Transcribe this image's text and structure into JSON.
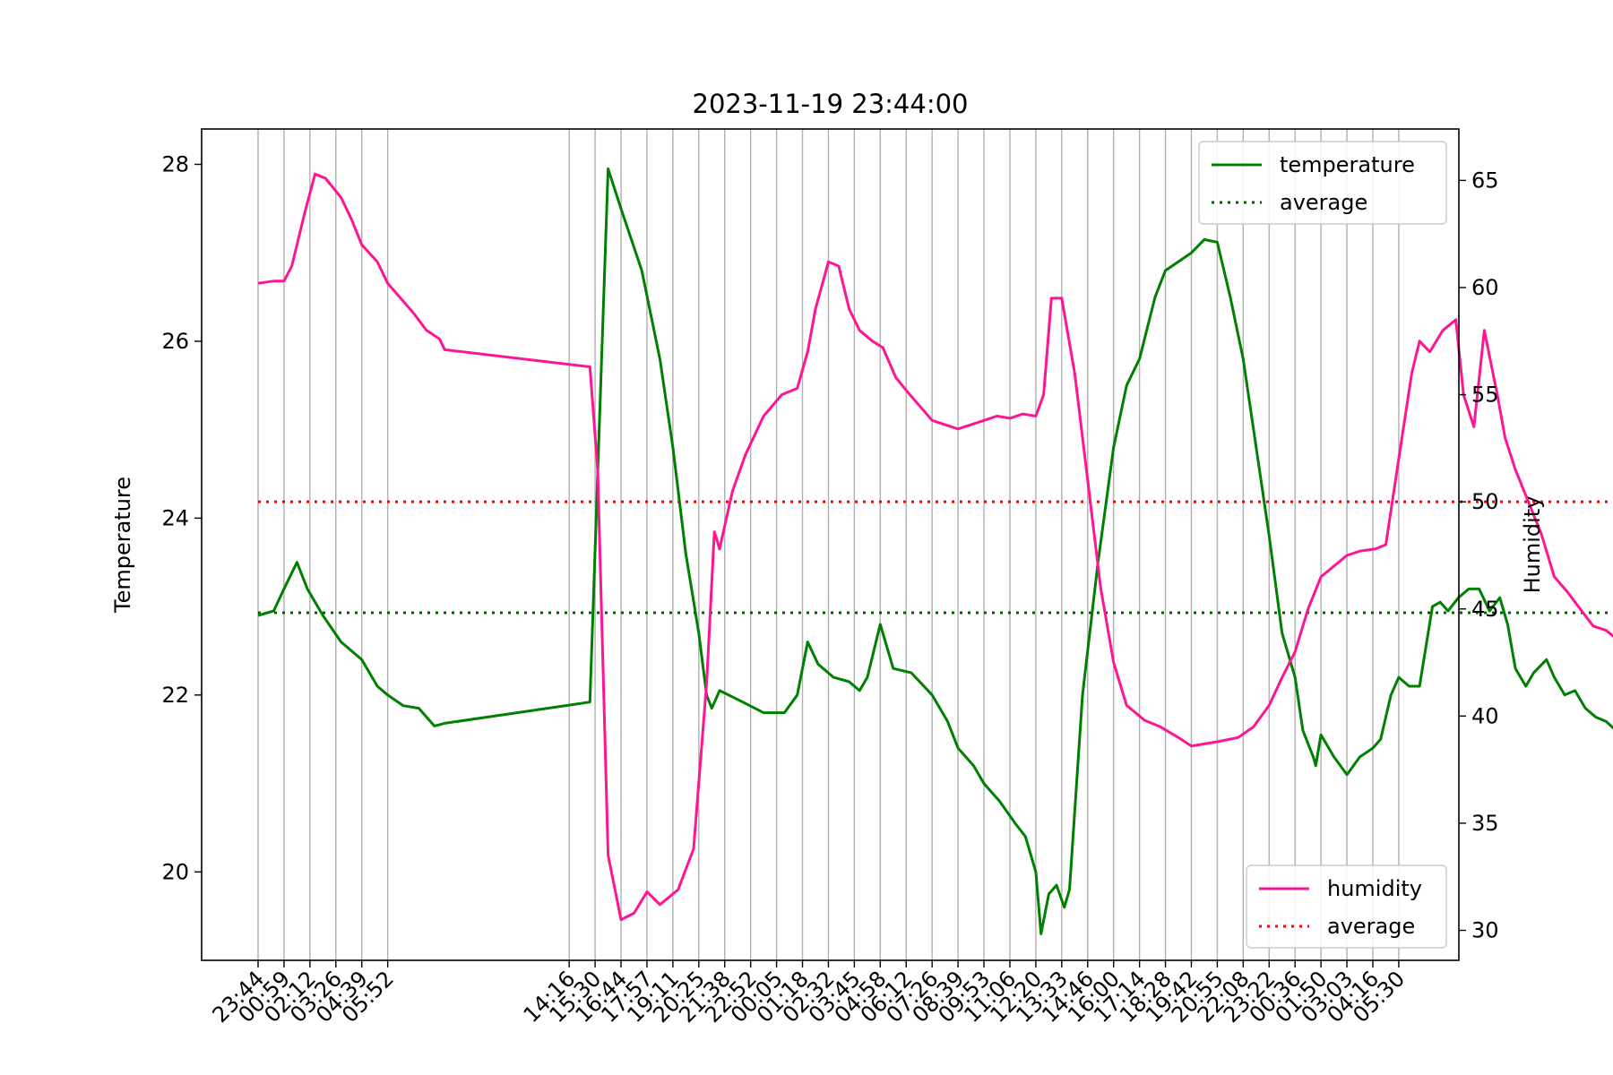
{
  "chart_data": {
    "type": "line",
    "title": "2023-11-19 23:44:00",
    "ylabel": "Temperature",
    "y2label": "Humidity",
    "ylim": [
      19.0,
      28.4
    ],
    "y2lim": [
      28.6,
      67.4
    ],
    "yticks": [
      20,
      22,
      24,
      26,
      28
    ],
    "y2ticks": [
      30,
      35,
      40,
      45,
      50,
      55,
      60,
      65
    ],
    "xticks": [
      "23:44",
      "00:59",
      "02:12",
      "03:26",
      "04:39",
      "05:52",
      "14:16",
      "15:30",
      "16:44",
      "17:57",
      "19:11",
      "20:25",
      "21:38",
      "22:52",
      "00:05",
      "01:18",
      "02:32",
      "03:45",
      "04:58",
      "06:12",
      "07:26",
      "08:39",
      "09:53",
      "11:06",
      "12:20",
      "13:33",
      "14:46",
      "16:00",
      "17:14",
      "18:28",
      "19:42",
      "20:55",
      "22:08",
      "23:22",
      "00:36",
      "01:50",
      "03:03",
      "04:16",
      "05:30"
    ],
    "grid": "vertical",
    "colors": {
      "temperature": "#008000",
      "humidity": "#ff1493",
      "temp_average": "#006400",
      "hum_average": "#ff0000"
    },
    "series": [
      {
        "name": "temperature",
        "axis": "left",
        "points": [
          [
            0,
            22.9
          ],
          [
            0.6,
            22.95
          ],
          [
            1,
            23.2
          ],
          [
            1.5,
            23.5
          ],
          [
            1.9,
            23.2
          ],
          [
            2.5,
            22.9
          ],
          [
            3.2,
            22.6
          ],
          [
            4,
            22.4
          ],
          [
            4.6,
            22.1
          ],
          [
            5,
            22.0
          ],
          [
            5.6,
            21.88
          ],
          [
            6.2,
            21.85
          ],
          [
            6.8,
            21.65
          ],
          [
            7.2,
            21.68
          ],
          [
            12.8,
            21.92
          ],
          [
            13.5,
            27.95
          ],
          [
            14,
            27.5
          ],
          [
            14.8,
            26.8
          ],
          [
            15.5,
            25.8
          ],
          [
            16,
            24.8
          ],
          [
            16.5,
            23.6
          ],
          [
            17,
            22.7
          ],
          [
            17.3,
            22.0
          ],
          [
            17.5,
            21.85
          ],
          [
            17.8,
            22.05
          ],
          [
            18.5,
            21.95
          ],
          [
            19.5,
            21.8
          ],
          [
            20.3,
            21.8
          ],
          [
            20.8,
            22.0
          ],
          [
            21.2,
            22.6
          ],
          [
            21.6,
            22.35
          ],
          [
            22.2,
            22.2
          ],
          [
            22.8,
            22.15
          ],
          [
            23.2,
            22.05
          ],
          [
            23.5,
            22.2
          ],
          [
            24,
            22.8
          ],
          [
            24.5,
            22.3
          ],
          [
            25.2,
            22.25
          ],
          [
            26,
            22.0
          ],
          [
            26.6,
            21.7
          ],
          [
            27,
            21.4
          ],
          [
            27.6,
            21.2
          ],
          [
            28,
            21.0
          ],
          [
            28.6,
            20.8
          ],
          [
            29.2,
            20.55
          ],
          [
            29.6,
            20.4
          ],
          [
            30,
            20.0
          ],
          [
            30.2,
            19.3
          ],
          [
            30.5,
            19.75
          ],
          [
            30.8,
            19.85
          ],
          [
            31.1,
            19.6
          ],
          [
            31.3,
            19.8
          ],
          [
            31.8,
            22.0
          ],
          [
            32.4,
            23.5
          ],
          [
            33,
            24.8
          ],
          [
            33.5,
            25.5
          ],
          [
            34,
            25.8
          ],
          [
            34.6,
            26.5
          ],
          [
            35,
            26.8
          ],
          [
            35.5,
            26.9
          ],
          [
            36,
            27.0
          ],
          [
            36.5,
            27.15
          ],
          [
            37,
            27.12
          ],
          [
            37.5,
            26.5
          ],
          [
            38,
            25.8
          ],
          [
            38.5,
            24.8
          ],
          [
            39,
            23.8
          ],
          [
            39.5,
            22.7
          ],
          [
            40,
            22.2
          ],
          [
            40.3,
            21.6
          ],
          [
            40.7,
            21.3
          ],
          [
            40.8,
            21.2
          ],
          [
            41,
            21.55
          ],
          [
            41.5,
            21.3
          ],
          [
            42,
            21.1
          ],
          [
            42.5,
            21.3
          ],
          [
            43,
            21.4
          ],
          [
            43.3,
            21.5
          ],
          [
            43.7,
            22.0
          ],
          [
            44,
            22.2
          ],
          [
            44.4,
            22.1
          ],
          [
            44.8,
            22.1
          ],
          [
            45.3,
            23.0
          ],
          [
            45.6,
            23.05
          ],
          [
            45.9,
            22.95
          ],
          [
            46.3,
            23.1
          ],
          [
            46.7,
            23.2
          ],
          [
            47.1,
            23.2
          ],
          [
            47.5,
            22.95
          ],
          [
            47.9,
            23.1
          ],
          [
            48.2,
            22.8
          ],
          [
            48.5,
            22.3
          ],
          [
            48.9,
            22.1
          ],
          [
            49.2,
            22.25
          ],
          [
            49.7,
            22.4
          ],
          [
            50,
            22.2
          ],
          [
            50.4,
            22.0
          ],
          [
            50.8,
            22.05
          ],
          [
            51.2,
            21.85
          ],
          [
            51.6,
            21.75
          ],
          [
            52,
            21.7
          ],
          [
            52.3,
            21.62
          ]
        ]
      },
      {
        "name": "humidity",
        "axis": "right",
        "points": [
          [
            0,
            60.2
          ],
          [
            0.6,
            60.3
          ],
          [
            1,
            60.3
          ],
          [
            1.3,
            61
          ],
          [
            1.8,
            63.5
          ],
          [
            2.2,
            65.3
          ],
          [
            2.6,
            65.1
          ],
          [
            3.2,
            64.2
          ],
          [
            3.6,
            63.2
          ],
          [
            4,
            62
          ],
          [
            4.6,
            61.2
          ],
          [
            5,
            60.2
          ],
          [
            5.5,
            59.5
          ],
          [
            6,
            58.8
          ],
          [
            6.5,
            58
          ],
          [
            7,
            57.6
          ],
          [
            7.2,
            57.1
          ],
          [
            12.8,
            56.3
          ],
          [
            13.1,
            51.5
          ],
          [
            13.5,
            33.5
          ],
          [
            14,
            30.5
          ],
          [
            14.5,
            30.8
          ],
          [
            15,
            31.8
          ],
          [
            15.5,
            31.2
          ],
          [
            16.2,
            31.9
          ],
          [
            16.8,
            33.8
          ],
          [
            17.3,
            41.5
          ],
          [
            17.6,
            48.6
          ],
          [
            17.8,
            47.8
          ],
          [
            18.3,
            50.5
          ],
          [
            18.8,
            52.2
          ],
          [
            19.5,
            54
          ],
          [
            20.2,
            55
          ],
          [
            20.8,
            55.3
          ],
          [
            21.2,
            57
          ],
          [
            21.5,
            59
          ],
          [
            22,
            61.2
          ],
          [
            22.4,
            61
          ],
          [
            22.8,
            59
          ],
          [
            23.2,
            58
          ],
          [
            23.7,
            57.5
          ],
          [
            24.1,
            57.2
          ],
          [
            24.6,
            55.8
          ],
          [
            25,
            55.2
          ],
          [
            25.5,
            54.5
          ],
          [
            26,
            53.8
          ],
          [
            26.5,
            53.6
          ],
          [
            27,
            53.4
          ],
          [
            27.5,
            53.6
          ],
          [
            28,
            53.8
          ],
          [
            28.5,
            54
          ],
          [
            29,
            53.9
          ],
          [
            29.5,
            54.1
          ],
          [
            30,
            54
          ],
          [
            30.3,
            55
          ],
          [
            30.6,
            59.5
          ],
          [
            31,
            59.5
          ],
          [
            31.5,
            56
          ],
          [
            32,
            51
          ],
          [
            32.5,
            46
          ],
          [
            33,
            42.5
          ],
          [
            33.5,
            40.5
          ],
          [
            34.2,
            39.8
          ],
          [
            34.8,
            39.5
          ],
          [
            35.5,
            39
          ],
          [
            36,
            38.6
          ],
          [
            36.5,
            38.7
          ],
          [
            37,
            38.8
          ],
          [
            37.8,
            39
          ],
          [
            38.4,
            39.5
          ],
          [
            39,
            40.5
          ],
          [
            39.5,
            41.8
          ],
          [
            40,
            43
          ],
          [
            40.5,
            45
          ],
          [
            41,
            46.5
          ],
          [
            41.5,
            47
          ],
          [
            42,
            47.5
          ],
          [
            42.5,
            47.7
          ],
          [
            43.1,
            47.8
          ],
          [
            43.5,
            48
          ],
          [
            44,
            52
          ],
          [
            44.5,
            56
          ],
          [
            44.8,
            57.5
          ],
          [
            45.2,
            57
          ],
          [
            45.7,
            58
          ],
          [
            46.2,
            58.5
          ],
          [
            46.5,
            55
          ],
          [
            46.9,
            53.5
          ],
          [
            47.3,
            58
          ],
          [
            47.8,
            55
          ],
          [
            48.1,
            53
          ],
          [
            48.5,
            51.5
          ],
          [
            49,
            50
          ],
          [
            49.5,
            48.5
          ],
          [
            50,
            46.5
          ],
          [
            50.5,
            45.8
          ],
          [
            51,
            45
          ],
          [
            51.5,
            44.2
          ],
          [
            52,
            44
          ],
          [
            52.5,
            43.5
          ]
        ]
      }
    ],
    "averages": [
      {
        "axis": "left",
        "value": 22.93,
        "name": "average"
      },
      {
        "axis": "right",
        "value": 50.0,
        "name": "average"
      }
    ],
    "legend_top": {
      "position": "top-right",
      "entries": [
        "temperature",
        "average"
      ]
    },
    "legend_bottom": {
      "position": "bottom-right",
      "entries": [
        "humidity",
        "average"
      ]
    }
  }
}
